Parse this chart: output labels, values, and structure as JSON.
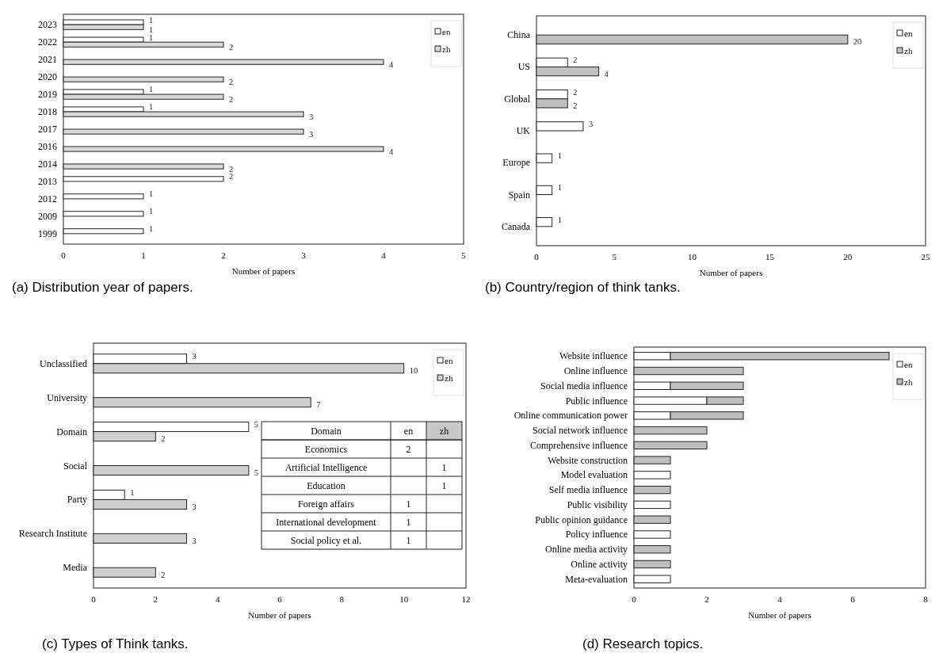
{
  "chart_data": [
    {
      "type": "bar",
      "orientation": "horizontal",
      "title": "(a) Distribution year of papers.",
      "xlabel": "Number of papers",
      "categories": [
        "2023",
        "2022",
        "2021",
        "2020",
        "2019",
        "2018",
        "2017",
        "2016",
        "2014",
        "2013",
        "2012",
        "2009",
        "1999"
      ],
      "series": [
        {
          "name": "en",
          "color": "#ffffff",
          "values": [
            1,
            1,
            null,
            null,
            1,
            1,
            null,
            null,
            null,
            2,
            1,
            1,
            1
          ]
        },
        {
          "name": "zh",
          "color": "#d9d9d9",
          "values": [
            1,
            2,
            4,
            2,
            2,
            3,
            3,
            4,
            2,
            null,
            null,
            null,
            null
          ]
        }
      ],
      "xlim": [
        0,
        5
      ],
      "xticks": [
        0,
        1,
        2,
        3,
        4,
        5
      ],
      "data_labels": true,
      "legend": "top right",
      "grid": false
    },
    {
      "type": "bar",
      "orientation": "horizontal",
      "title": "(b) Country/region of think tanks.",
      "xlabel": "Number of papers",
      "categories": [
        "China",
        "US",
        "Global",
        "UK",
        "Europe",
        "Spain",
        "Canada"
      ],
      "series": [
        {
          "name": "en",
          "color": "#ffffff",
          "values": [
            null,
            2,
            2,
            3,
            1,
            1,
            1
          ]
        },
        {
          "name": "zh",
          "color": "#bfbfbf",
          "values": [
            20,
            4,
            2,
            null,
            null,
            null,
            null
          ]
        }
      ],
      "xlim": [
        0,
        25
      ],
      "xticks": [
        0,
        5,
        10,
        15,
        20,
        25
      ],
      "data_labels": true,
      "legend": "top right",
      "grid": false
    },
    {
      "type": "bar",
      "orientation": "horizontal",
      "title": "(c) Types of Think tanks.",
      "xlabel": "Number of papers",
      "categories": [
        "Unclassified",
        "University",
        "Domain",
        "Social",
        "Party",
        "Research Institute",
        "Media"
      ],
      "series": [
        {
          "name": "en",
          "color": "#ffffff",
          "values": [
            3,
            null,
            5,
            null,
            1,
            null,
            null
          ]
        },
        {
          "name": "zh",
          "color": "#cfcfcf",
          "values": [
            10,
            7,
            2,
            5,
            3,
            3,
            2
          ]
        }
      ],
      "xlim": [
        0,
        12
      ],
      "xticks": [
        0,
        2,
        4,
        6,
        8,
        10,
        12
      ],
      "data_labels": true,
      "legend": "top right",
      "grid": false
    },
    {
      "type": "bar",
      "orientation": "horizontal",
      "stacked": true,
      "title": "(d) Research topics.",
      "xlabel": "Number of papers",
      "categories": [
        "Website influence",
        "Online influence",
        "Social media influence",
        "Public influence",
        "Online communication power",
        "Social network influence",
        "Comprehensive influence",
        "Website construction",
        "Model evaluation",
        "Self media influence",
        "Public visibility",
        "Public opinion guidance",
        "Policy influence",
        "Online media activity",
        "Online activity",
        "Meta-evaluation"
      ],
      "series": [
        {
          "name": "en",
          "color": "#ffffff",
          "values": [
            1,
            null,
            1,
            2,
            1,
            null,
            null,
            null,
            1,
            null,
            1,
            null,
            1,
            null,
            null,
            1
          ]
        },
        {
          "name": "zh",
          "color": "#bfbfbf",
          "values": [
            6,
            3,
            2,
            1,
            2,
            2,
            2,
            1,
            null,
            1,
            null,
            1,
            null,
            1,
            1,
            null
          ]
        }
      ],
      "xlim": [
        0,
        8
      ],
      "xticks": [
        0,
        2,
        4,
        6,
        8
      ],
      "legend": "top right",
      "grid": false
    },
    {
      "type": "other",
      "title": "Domain",
      "data_labels": true,
      "categories": [
        "Economics",
        "Artificial Intelligence",
        "Education",
        "Foreign affairs",
        "International development",
        "Social policy et al."
      ],
      "series": [
        {
          "name": "en",
          "values": [
            2,
            null,
            null,
            1,
            1,
            1
          ]
        },
        {
          "name": "zh",
          "values": [
            null,
            1,
            1,
            null,
            null,
            null
          ]
        }
      ]
    }
  ]
}
